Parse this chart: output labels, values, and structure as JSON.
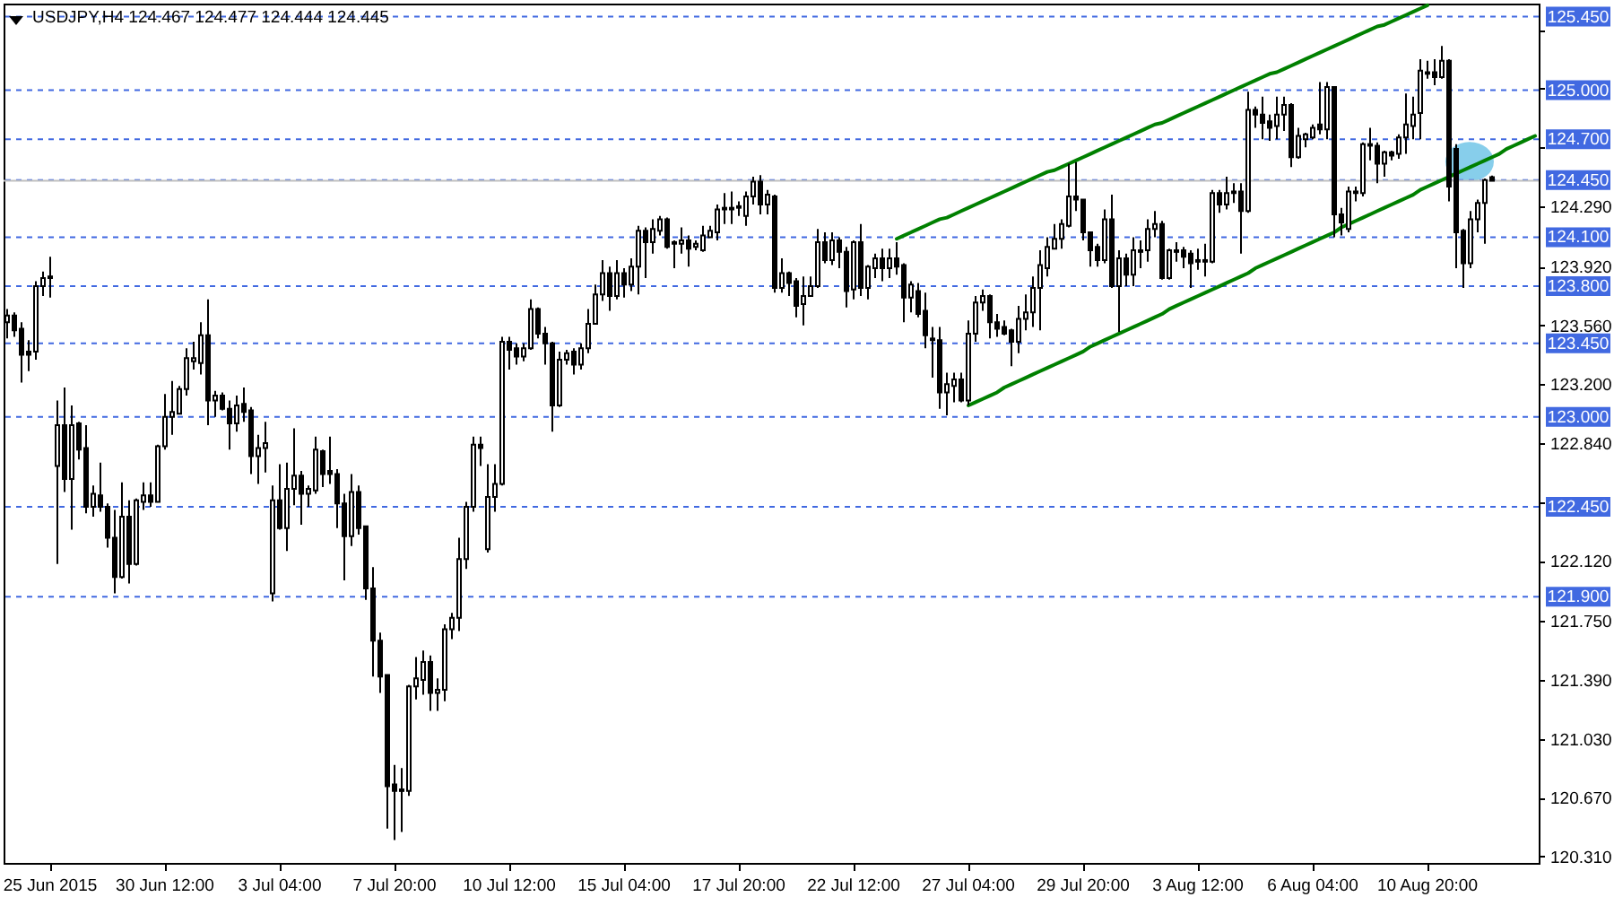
{
  "chart_data": {
    "type": "candlestick",
    "title": "USDJPY,H4 124.467 124.477 124.444 124.445",
    "categories": [
      null,
      null,
      null,
      null,
      null,
      null,
      "25 Jun 2015",
      null,
      null,
      null,
      null,
      null,
      null,
      null,
      null,
      null,
      null,
      null,
      null,
      null,
      null,
      null,
      "30 Jun 12:00",
      null,
      null,
      null,
      null,
      null,
      null,
      null,
      null,
      null,
      null,
      null,
      null,
      null,
      null,
      null,
      "3 Jul 04:00",
      null,
      null,
      null,
      null,
      null,
      null,
      null,
      null,
      null,
      null,
      null,
      null,
      null,
      null,
      null,
      "7 Jul 20:00",
      null,
      null,
      null,
      null,
      null,
      null,
      null,
      null,
      null,
      null,
      null,
      null,
      null,
      null,
      null,
      "10 Jul 12:00",
      null,
      null,
      null,
      null,
      null,
      null,
      null,
      null,
      null,
      null,
      null,
      null,
      null,
      null,
      null,
      "15 Jul 04:00",
      null,
      null,
      null,
      null,
      null,
      null,
      null,
      null,
      null,
      null,
      null,
      null,
      null,
      null,
      null,
      "17 Jul 20:00",
      null,
      null,
      null,
      null,
      null,
      null,
      null,
      null,
      null,
      null,
      null,
      null,
      null,
      null,
      null,
      "22 Jul 12:00",
      null,
      null,
      null,
      null,
      null,
      null,
      null,
      null,
      null,
      null,
      null,
      null,
      null,
      null,
      null,
      "27 Jul 04:00",
      null,
      null,
      null,
      null,
      null,
      null,
      null,
      null,
      null,
      null,
      null,
      null,
      null,
      null,
      null,
      "29 Jul 20:00",
      null,
      null,
      null,
      null,
      null,
      null,
      null,
      null,
      null,
      null,
      null,
      null,
      null,
      null,
      null,
      "3 Aug 12:00",
      null,
      null,
      null,
      null,
      null,
      null,
      null,
      null,
      null,
      null,
      null,
      null,
      null,
      null,
      null,
      "6 Aug 04:00",
      null,
      null,
      null,
      null,
      null,
      null,
      null,
      null,
      null,
      null,
      null,
      null,
      null,
      null,
      null,
      "10 Aug 20:00",
      null,
      null,
      null,
      null,
      null,
      null,
      null,
      null,
      null,
      null,
      null,
      null,
      null,
      null,
      null
    ],
    "ohlc": [
      [
        123.58,
        123.66,
        123.48,
        123.62
      ],
      [
        123.62,
        123.64,
        123.49,
        123.53
      ],
      [
        123.54,
        123.58,
        123.21,
        123.38
      ],
      [
        123.4,
        123.47,
        123.28,
        123.38
      ],
      [
        123.4,
        123.83,
        123.35,
        123.8
      ],
      [
        123.8,
        123.89,
        123.74,
        123.85
      ],
      [
        123.86,
        123.98,
        123.73,
        123.85
      ],
      [
        122.7,
        123.1,
        122.1,
        122.95
      ],
      [
        122.95,
        123.18,
        122.54,
        122.62
      ],
      [
        122.62,
        123.07,
        122.31,
        122.95
      ],
      [
        122.96,
        122.97,
        122.74,
        122.8
      ],
      [
        122.81,
        122.95,
        122.41,
        122.45
      ],
      [
        122.45,
        122.58,
        122.39,
        122.53
      ],
      [
        122.52,
        122.72,
        122.42,
        122.45
      ],
      [
        122.45,
        122.47,
        122.2,
        122.26
      ],
      [
        122.26,
        122.43,
        121.92,
        122.02
      ],
      [
        122.02,
        122.6,
        122.01,
        122.39
      ],
      [
        122.39,
        122.49,
        121.98,
        122.1
      ],
      [
        122.1,
        122.5,
        122.09,
        122.49
      ],
      [
        122.48,
        122.6,
        122.43,
        122.52
      ],
      [
        122.52,
        122.6,
        122.45,
        122.48
      ],
      [
        122.48,
        122.83,
        122.48,
        122.82
      ],
      [
        122.82,
        123.14,
        122.8,
        123.0
      ],
      [
        123.0,
        123.22,
        122.89,
        123.03
      ],
      [
        123.02,
        123.19,
        123.02,
        123.17
      ],
      [
        123.17,
        123.42,
        123.13,
        123.36
      ],
      [
        123.34,
        123.46,
        123.29,
        123.36
      ],
      [
        123.33,
        123.58,
        123.26,
        123.5
      ],
      [
        123.5,
        123.72,
        122.95,
        123.1
      ],
      [
        123.1,
        123.16,
        123.0,
        123.13
      ],
      [
        123.13,
        123.15,
        123.04,
        123.05
      ],
      [
        123.05,
        123.1,
        122.8,
        122.96
      ],
      [
        122.96,
        123.13,
        122.91,
        123.07
      ],
      [
        123.08,
        123.18,
        122.97,
        123.03
      ],
      [
        123.04,
        123.06,
        122.65,
        122.76
      ],
      [
        122.76,
        122.89,
        122.59,
        122.81
      ],
      [
        122.81,
        122.97,
        122.66,
        122.84
      ],
      [
        121.92,
        122.58,
        121.87,
        122.49
      ],
      [
        122.49,
        122.71,
        122.31,
        122.32
      ],
      [
        122.32,
        122.72,
        122.18,
        122.56
      ],
      [
        122.56,
        122.93,
        122.46,
        122.64
      ],
      [
        122.64,
        122.67,
        122.34,
        122.53
      ],
      [
        122.53,
        122.58,
        122.45,
        122.56
      ],
      [
        122.55,
        122.88,
        122.53,
        122.8
      ],
      [
        122.79,
        122.8,
        122.57,
        122.65
      ],
      [
        122.67,
        122.88,
        122.59,
        122.65
      ],
      [
        122.65,
        122.68,
        122.32,
        122.47
      ],
      [
        122.47,
        122.53,
        122.0,
        122.27
      ],
      [
        122.27,
        122.65,
        122.21,
        122.54
      ],
      [
        122.54,
        122.58,
        122.28,
        122.32
      ],
      [
        122.33,
        122.33,
        121.88,
        121.95
      ],
      [
        121.95,
        122.08,
        121.41,
        121.63
      ],
      [
        121.63,
        121.68,
        121.31,
        121.41
      ],
      [
        121.42,
        121.42,
        120.48,
        120.74
      ],
      [
        120.75,
        120.87,
        120.41,
        120.71
      ],
      [
        120.71,
        120.85,
        120.46,
        120.72
      ],
      [
        120.71,
        121.36,
        120.68,
        121.35
      ],
      [
        121.35,
        121.53,
        121.27,
        121.4
      ],
      [
        121.39,
        121.57,
        121.3,
        121.5
      ],
      [
        121.5,
        121.54,
        121.2,
        121.31
      ],
      [
        121.31,
        121.4,
        121.2,
        121.33
      ],
      [
        121.33,
        121.73,
        121.26,
        121.7
      ],
      [
        121.7,
        121.8,
        121.64,
        121.77
      ],
      [
        121.77,
        122.26,
        121.69,
        122.13
      ],
      [
        122.13,
        122.48,
        122.07,
        122.45
      ],
      [
        122.45,
        122.88,
        122.42,
        122.83
      ],
      [
        122.83,
        122.88,
        122.7,
        122.81
      ],
      [
        122.19,
        122.71,
        122.17,
        122.51
      ],
      [
        122.51,
        122.71,
        122.42,
        122.59
      ],
      [
        122.59,
        123.49,
        122.58,
        123.46
      ],
      [
        123.46,
        123.49,
        123.29,
        123.41
      ],
      [
        123.42,
        123.45,
        123.32,
        123.37
      ],
      [
        123.37,
        123.45,
        123.34,
        123.42
      ],
      [
        123.42,
        123.72,
        123.41,
        123.66
      ],
      [
        123.66,
        123.67,
        123.48,
        123.51
      ],
      [
        123.51,
        123.55,
        123.32,
        123.45
      ],
      [
        123.45,
        123.46,
        122.91,
        123.07
      ],
      [
        123.07,
        123.4,
        123.06,
        123.35
      ],
      [
        123.35,
        123.41,
        123.32,
        123.39
      ],
      [
        123.4,
        123.42,
        123.26,
        123.32
      ],
      [
        123.32,
        123.45,
        123.29,
        123.42
      ],
      [
        123.42,
        123.66,
        123.39,
        123.57
      ],
      [
        123.57,
        123.81,
        123.57,
        123.75
      ],
      [
        123.75,
        123.96,
        123.71,
        123.88
      ],
      [
        123.88,
        123.92,
        123.65,
        123.74
      ],
      [
        123.74,
        123.96,
        123.72,
        123.88
      ],
      [
        123.88,
        123.91,
        123.73,
        123.81
      ],
      [
        123.81,
        123.97,
        123.77,
        123.92
      ],
      [
        123.92,
        124.17,
        123.75,
        124.14
      ],
      [
        124.14,
        124.16,
        123.85,
        124.07
      ],
      [
        124.07,
        124.21,
        124.0,
        124.15
      ],
      [
        124.14,
        124.23,
        124.11,
        124.21
      ],
      [
        124.21,
        124.22,
        124.03,
        124.04
      ],
      [
        124.07,
        124.08,
        123.91,
        124.06
      ],
      [
        124.06,
        124.16,
        124.0,
        124.08
      ],
      [
        124.08,
        124.11,
        123.92,
        124.03
      ],
      [
        124.04,
        124.08,
        124.02,
        124.06
      ],
      [
        124.02,
        124.17,
        124.01,
        124.11
      ],
      [
        124.1,
        124.17,
        124.1,
        124.14
      ],
      [
        124.13,
        124.3,
        124.08,
        124.27
      ],
      [
        124.28,
        124.37,
        124.18,
        124.27
      ],
      [
        124.27,
        124.38,
        124.18,
        124.28
      ],
      [
        124.29,
        124.32,
        124.23,
        124.28
      ],
      [
        124.23,
        124.38,
        124.17,
        124.35
      ],
      [
        124.35,
        124.47,
        124.3,
        124.44
      ],
      [
        124.44,
        124.48,
        124.24,
        124.3
      ],
      [
        124.3,
        124.39,
        124.24,
        124.36
      ],
      [
        124.35,
        124.36,
        123.76,
        123.79
      ],
      [
        123.79,
        123.97,
        123.76,
        123.88
      ],
      [
        123.88,
        123.89,
        123.74,
        123.82
      ],
      [
        123.83,
        123.85,
        123.61,
        123.68
      ],
      [
        123.69,
        123.86,
        123.56,
        123.74
      ],
      [
        123.74,
        123.86,
        123.74,
        123.8
      ],
      [
        123.8,
        124.15,
        123.79,
        124.07
      ],
      [
        124.07,
        124.13,
        123.94,
        123.96
      ],
      [
        123.96,
        124.13,
        123.93,
        124.08
      ],
      [
        124.08,
        124.1,
        123.91,
        124.01
      ],
      [
        124.01,
        124.04,
        123.67,
        123.77
      ],
      [
        123.78,
        124.08,
        123.72,
        124.07
      ],
      [
        124.07,
        124.18,
        123.74,
        123.79
      ],
      [
        123.79,
        123.93,
        123.72,
        123.92
      ],
      [
        123.91,
        124.0,
        123.85,
        123.97
      ],
      [
        123.97,
        124.03,
        123.83,
        123.91
      ],
      [
        123.91,
        124.03,
        123.85,
        123.97
      ],
      [
        123.97,
        124.07,
        123.87,
        123.92
      ],
      [
        123.93,
        123.94,
        123.58,
        123.73
      ],
      [
        123.73,
        123.83,
        123.64,
        123.81
      ],
      [
        123.77,
        123.82,
        123.61,
        123.63
      ],
      [
        123.65,
        123.76,
        123.42,
        123.5
      ],
      [
        123.48,
        123.55,
        123.24,
        123.47
      ],
      [
        123.47,
        123.55,
        123.05,
        123.15
      ],
      [
        123.15,
        123.27,
        123.01,
        123.2
      ],
      [
        123.19,
        123.27,
        123.09,
        123.23
      ],
      [
        123.23,
        123.27,
        123.09,
        123.1
      ],
      [
        123.1,
        123.59,
        123.07,
        123.51
      ],
      [
        123.51,
        123.74,
        123.46,
        123.7
      ],
      [
        123.7,
        123.78,
        123.65,
        123.74
      ],
      [
        123.74,
        123.75,
        123.48,
        123.58
      ],
      [
        123.58,
        123.63,
        123.49,
        123.54
      ],
      [
        123.55,
        123.59,
        123.5,
        123.51
      ],
      [
        123.53,
        123.54,
        123.31,
        123.46
      ],
      [
        123.46,
        123.68,
        123.39,
        123.6
      ],
      [
        123.6,
        123.75,
        123.53,
        123.64
      ],
      [
        123.64,
        123.86,
        123.55,
        123.79
      ],
      [
        123.79,
        124.02,
        123.53,
        123.93
      ],
      [
        123.91,
        124.1,
        123.86,
        124.04
      ],
      [
        124.03,
        124.18,
        124.03,
        124.09
      ],
      [
        124.09,
        124.21,
        124.03,
        124.18
      ],
      [
        124.17,
        124.55,
        124.16,
        124.35
      ],
      [
        124.35,
        124.56,
        124.26,
        124.33
      ],
      [
        124.33,
        124.33,
        124.08,
        124.13
      ],
      [
        124.13,
        124.13,
        123.92,
        124.02
      ],
      [
        124.04,
        124.06,
        123.92,
        123.96
      ],
      [
        123.96,
        124.27,
        123.94,
        124.21
      ],
      [
        124.21,
        124.36,
        123.79,
        123.8
      ],
      [
        123.8,
        124.02,
        123.52,
        123.97
      ],
      [
        123.97,
        124.0,
        123.8,
        123.87
      ],
      [
        123.87,
        124.1,
        123.8,
        124.02
      ],
      [
        124.01,
        124.08,
        123.91,
        124.02
      ],
      [
        124.02,
        124.21,
        123.95,
        124.15
      ],
      [
        124.15,
        124.26,
        124.1,
        124.18
      ],
      [
        124.18,
        124.2,
        123.84,
        123.85
      ],
      [
        123.85,
        124.03,
        123.84,
        124.02
      ],
      [
        124.01,
        124.07,
        123.95,
        124.02
      ],
      [
        124.02,
        124.04,
        123.91,
        123.98
      ],
      [
        124.0,
        124.02,
        123.79,
        123.94
      ],
      [
        123.96,
        124.03,
        123.9,
        123.95
      ],
      [
        123.95,
        124.06,
        123.86,
        123.96
      ],
      [
        123.95,
        124.39,
        123.94,
        124.37
      ],
      [
        124.37,
        124.39,
        124.25,
        124.3
      ],
      [
        124.3,
        124.47,
        124.27,
        124.37
      ],
      [
        124.37,
        124.43,
        124.31,
        124.38
      ],
      [
        124.38,
        124.43,
        124.0,
        124.26
      ],
      [
        124.26,
        124.99,
        124.25,
        124.88
      ],
      [
        124.88,
        124.9,
        124.77,
        124.85
      ],
      [
        124.85,
        124.96,
        124.7,
        124.8
      ],
      [
        124.81,
        124.85,
        124.69,
        124.77
      ],
      [
        124.78,
        124.96,
        124.7,
        124.85
      ],
      [
        124.85,
        124.96,
        124.75,
        124.91
      ],
      [
        124.91,
        124.92,
        124.53,
        124.59
      ],
      [
        124.59,
        124.77,
        124.58,
        124.72
      ],
      [
        124.7,
        124.74,
        124.65,
        124.73
      ],
      [
        124.71,
        124.79,
        124.7,
        124.77
      ],
      [
        124.79,
        125.05,
        124.73,
        124.76
      ],
      [
        124.76,
        125.05,
        124.7,
        125.02
      ],
      [
        125.02,
        125.02,
        124.1,
        124.24
      ],
      [
        124.24,
        124.28,
        124.11,
        124.19
      ],
      [
        124.15,
        124.41,
        124.13,
        124.38
      ],
      [
        124.38,
        124.41,
        124.32,
        124.37
      ],
      [
        124.37,
        124.68,
        124.35,
        124.67
      ],
      [
        124.67,
        124.77,
        124.57,
        124.66
      ],
      [
        124.66,
        124.68,
        124.43,
        124.55
      ],
      [
        124.55,
        124.63,
        124.47,
        124.62
      ],
      [
        124.62,
        124.63,
        124.57,
        124.6
      ],
      [
        124.61,
        124.73,
        124.58,
        124.71
      ],
      [
        124.71,
        124.98,
        124.61,
        124.79
      ],
      [
        124.78,
        124.96,
        124.7,
        124.85
      ],
      [
        124.86,
        125.19,
        124.7,
        125.12
      ],
      [
        125.11,
        125.18,
        125.07,
        125.1
      ],
      [
        125.11,
        125.19,
        125.03,
        125.08
      ],
      [
        125.08,
        125.27,
        125.07,
        125.18
      ],
      [
        125.18,
        125.19,
        124.32,
        124.41
      ],
      [
        124.64,
        124.67,
        123.91,
        124.13
      ],
      [
        124.14,
        124.15,
        123.79,
        123.94
      ],
      [
        123.94,
        124.26,
        123.91,
        124.21
      ],
      [
        124.21,
        124.33,
        124.13,
        124.31
      ],
      [
        124.31,
        124.46,
        124.06,
        124.45
      ],
      [
        124.467,
        124.477,
        124.444,
        124.445
      ],
      null,
      null,
      null,
      null,
      null,
      null
    ],
    "series": [
      {
        "type": "line",
        "color": "#008000",
        "values": [
          null,
          null,
          null,
          null,
          null,
          null,
          null,
          null,
          null,
          null,
          null,
          null,
          null,
          null,
          null,
          null,
          null,
          null,
          null,
          null,
          null,
          null,
          null,
          null,
          null,
          null,
          null,
          null,
          null,
          null,
          null,
          null,
          null,
          null,
          null,
          null,
          null,
          null,
          null,
          null,
          null,
          null,
          null,
          null,
          null,
          null,
          null,
          null,
          null,
          null,
          null,
          null,
          null,
          null,
          null,
          null,
          null,
          null,
          null,
          null,
          null,
          null,
          null,
          null,
          null,
          null,
          null,
          null,
          null,
          null,
          null,
          null,
          null,
          null,
          null,
          null,
          null,
          null,
          null,
          null,
          null,
          null,
          null,
          null,
          null,
          null,
          null,
          null,
          null,
          null,
          null,
          null,
          null,
          null,
          null,
          null,
          null,
          null,
          null,
          null,
          null,
          null,
          null,
          null,
          null,
          null,
          null,
          null,
          null,
          null,
          null,
          null,
          null,
          null,
          null,
          null,
          null,
          null,
          null,
          null,
          null,
          null,
          null,
          null,
          124.09,
          124.11,
          124.13,
          124.15,
          124.17,
          124.19,
          124.21,
          124.22,
          124.24,
          124.26,
          124.28,
          124.3,
          124.32,
          124.34,
          124.36,
          124.38,
          124.4,
          124.42,
          124.44,
          124.46,
          124.48,
          124.5,
          124.51,
          124.53,
          124.55,
          124.57,
          124.59,
          124.61,
          124.63,
          124.65,
          124.67,
          124.69,
          124.71,
          124.73,
          124.75,
          124.77,
          124.79,
          124.8,
          124.82,
          124.84,
          124.86,
          124.88,
          124.9,
          124.92,
          124.94,
          124.96,
          124.98,
          125.0,
          125.02,
          125.04,
          125.06,
          125.08,
          125.1,
          125.11,
          125.13,
          125.15,
          125.17,
          125.19,
          125.21,
          125.23,
          125.25,
          125.27,
          125.29,
          125.31,
          125.33,
          125.35,
          125.37,
          125.39,
          125.4,
          125.42,
          125.44,
          125.46,
          125.48,
          125.5,
          125.52,
          null,
          null,
          null,
          null,
          null,
          null,
          null,
          null,
          null,
          null,
          null,
          null,
          null,
          null,
          null
        ]
      },
      {
        "type": "line",
        "color": "#008000",
        "values": [
          null,
          null,
          null,
          null,
          null,
          null,
          null,
          null,
          null,
          null,
          null,
          null,
          null,
          null,
          null,
          null,
          null,
          null,
          null,
          null,
          null,
          null,
          null,
          null,
          null,
          null,
          null,
          null,
          null,
          null,
          null,
          null,
          null,
          null,
          null,
          null,
          null,
          null,
          null,
          null,
          null,
          null,
          null,
          null,
          null,
          null,
          null,
          null,
          null,
          null,
          null,
          null,
          null,
          null,
          null,
          null,
          null,
          null,
          null,
          null,
          null,
          null,
          null,
          null,
          null,
          null,
          null,
          null,
          null,
          null,
          null,
          null,
          null,
          null,
          null,
          null,
          null,
          null,
          null,
          null,
          null,
          null,
          null,
          null,
          null,
          null,
          null,
          null,
          null,
          null,
          null,
          null,
          null,
          null,
          null,
          null,
          null,
          null,
          null,
          null,
          null,
          null,
          null,
          null,
          null,
          null,
          null,
          null,
          null,
          null,
          null,
          null,
          null,
          null,
          null,
          null,
          null,
          null,
          null,
          null,
          null,
          null,
          null,
          null,
          null,
          null,
          null,
          null,
          null,
          null,
          null,
          null,
          null,
          null,
          123.07,
          123.09,
          123.11,
          123.13,
          123.15,
          123.18,
          123.2,
          123.22,
          123.24,
          123.26,
          123.28,
          123.3,
          123.32,
          123.34,
          123.36,
          123.38,
          123.4,
          123.43,
          123.45,
          123.47,
          123.49,
          123.51,
          123.53,
          123.55,
          123.57,
          123.59,
          123.61,
          123.63,
          123.66,
          123.68,
          123.7,
          123.72,
          123.74,
          123.76,
          123.78,
          123.8,
          123.82,
          123.84,
          123.86,
          123.88,
          123.91,
          123.93,
          123.95,
          123.97,
          123.99,
          124.01,
          124.03,
          124.05,
          124.07,
          124.09,
          124.11,
          124.13,
          124.16,
          124.18,
          124.2,
          124.22,
          124.24,
          124.26,
          124.28,
          124.3,
          124.32,
          124.34,
          124.36,
          124.39,
          124.41,
          124.43,
          124.45,
          124.47,
          124.49,
          124.51,
          124.53,
          124.55,
          124.57,
          124.59,
          124.61,
          124.64,
          124.66,
          124.68,
          124.7,
          124.72
        ]
      }
    ],
    "ylim": [
      120.27,
      125.53
    ],
    "yticks": [
      {
        "value": 120.31,
        "label": "120.310"
      },
      {
        "value": 120.67,
        "label": "120.670"
      },
      {
        "value": 121.03,
        "label": "121.030"
      },
      {
        "value": 121.39,
        "label": "121.390"
      },
      {
        "value": 121.75,
        "label": "121.750"
      },
      {
        "value": 122.12,
        "label": "122.120"
      },
      {
        "value": 122.48,
        "label": null
      },
      {
        "value": 122.84,
        "label": "122.840"
      },
      {
        "value": 123.2,
        "label": "123.200"
      },
      {
        "value": 123.56,
        "label": "123.560"
      },
      {
        "value": 123.92,
        "label": "123.920"
      },
      {
        "value": 124.29,
        "label": "124.290"
      },
      {
        "value": 124.65,
        "label": null
      },
      {
        "value": 125.01,
        "label": null
      },
      {
        "value": 125.37,
        "label": null
      }
    ],
    "ref_lines": [
      {
        "axis": "y",
        "value": 125.45,
        "label": "125.450",
        "color": "#4169e1",
        "line_style": "dashed"
      },
      {
        "axis": "y",
        "value": 125.0,
        "label": "125.000",
        "color": "#4169e1",
        "line_style": "dashed"
      },
      {
        "axis": "y",
        "value": 124.7,
        "label": "124.700",
        "color": "#4169e1",
        "line_style": "dashed"
      },
      {
        "axis": "y",
        "value": 124.45,
        "label": "124.450",
        "color": "#4169e1",
        "line_style": "dashed"
      },
      {
        "axis": "y",
        "value": 124.1,
        "label": "124.100",
        "color": "#4169e1",
        "line_style": "dashed"
      },
      {
        "axis": "y",
        "value": 123.8,
        "label": "123.800",
        "color": "#4169e1",
        "line_style": "dashed"
      },
      {
        "axis": "y",
        "value": 123.45,
        "label": "123.450",
        "color": "#4169e1",
        "line_style": "dashed"
      },
      {
        "axis": "y",
        "value": 123.0,
        "label": "123.000",
        "color": "#4169e1",
        "line_style": "dashed"
      },
      {
        "axis": "y",
        "value": 122.45,
        "label": "122.450",
        "color": "#4169e1",
        "line_style": "dashed"
      },
      {
        "axis": "y",
        "value": 121.9,
        "label": "121.900",
        "color": "#4169e1",
        "line_style": "dashed"
      },
      {
        "axis": "y",
        "value": 124.445,
        "color": "#c0c0c0",
        "line_style": "solid"
      }
    ]
  }
}
